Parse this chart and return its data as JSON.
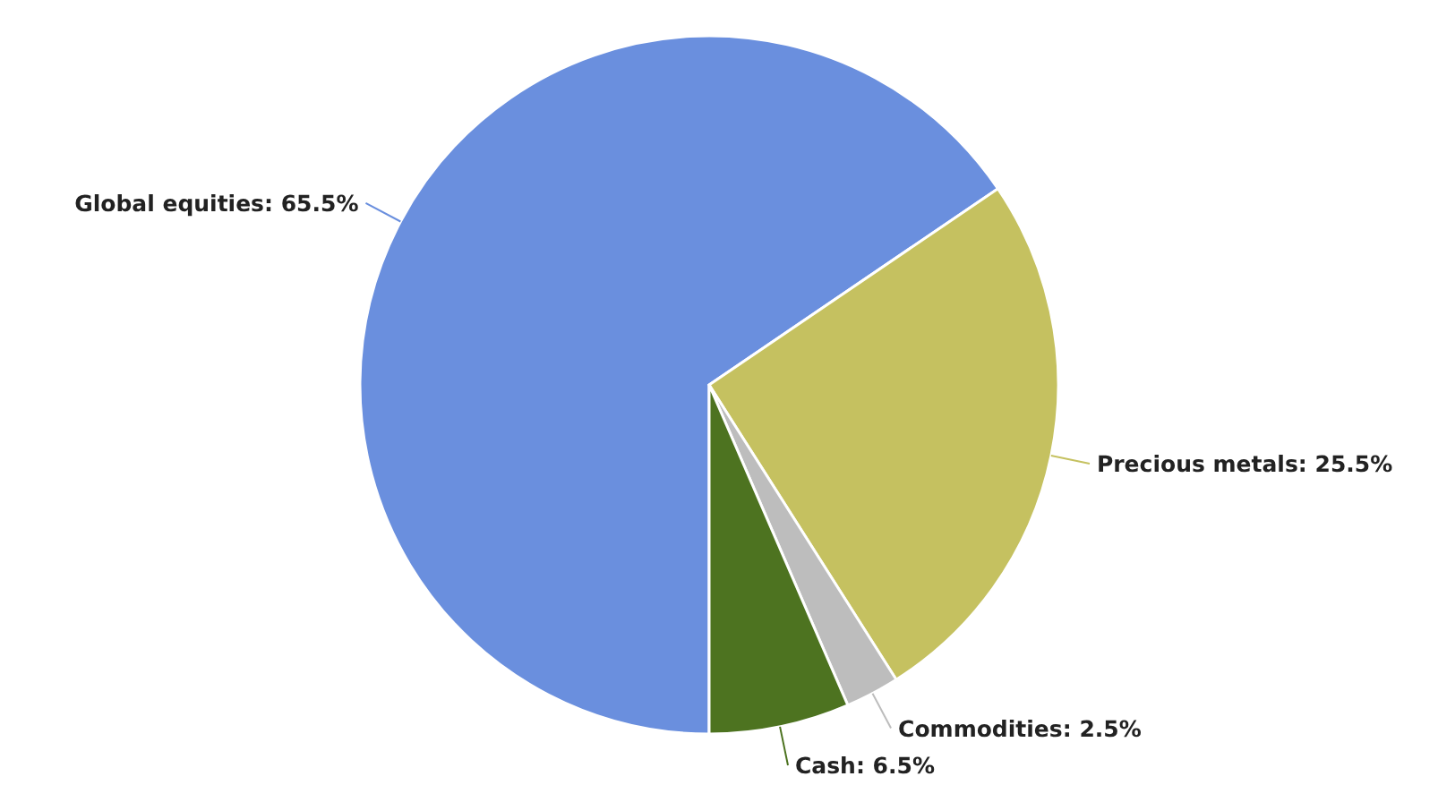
{
  "chart_data": {
    "type": "pie",
    "categories": [
      "Global equities",
      "Precious metals",
      "Commodities",
      "Cash"
    ],
    "values": [
      65.5,
      25.5,
      2.5,
      6.5
    ],
    "value_labels": [
      "65.5%",
      "25.5%",
      "2.5%",
      "6.5%"
    ],
    "colors": [
      "#6a8fde",
      "#c5c160",
      "#bdbdbd",
      "#4d7320"
    ],
    "legend": false
  }
}
